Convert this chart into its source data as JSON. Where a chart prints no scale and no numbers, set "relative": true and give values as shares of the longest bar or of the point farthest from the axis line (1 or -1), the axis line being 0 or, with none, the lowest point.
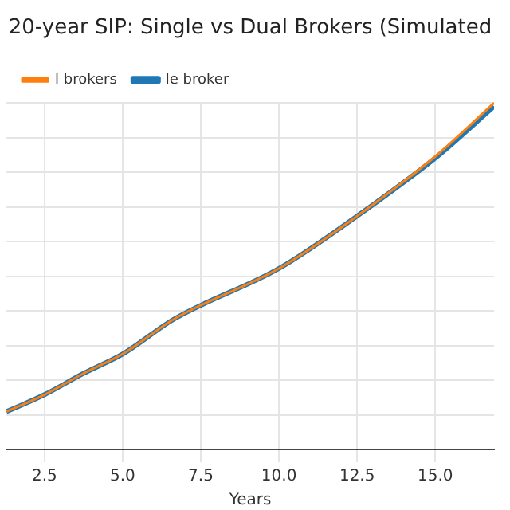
{
  "chart_data": {
    "type": "line",
    "title": "20-year SIP: Single vs Dual Brokers (Simulated",
    "xlabel": "Years",
    "relative": true,
    "x": [
      1.28,
      2.5,
      3.72,
      5.03,
      6.64,
      10.05,
      12.49,
      15.07,
      16.88
    ],
    "series": [
      {
        "name": "le broker",
        "color": "#1f77b4",
        "values": [
          0.109,
          0.158,
          0.218,
          0.277,
          0.376,
          0.525,
          0.673,
          0.846,
          0.99
        ]
      },
      {
        "name": "l brokers",
        "color": "#ff7f0e",
        "values": [
          0.109,
          0.158,
          0.218,
          0.277,
          0.376,
          0.525,
          0.673,
          0.851,
          1.0
        ]
      }
    ],
    "xlim": [
      1.28,
      16.88
    ],
    "xticks": [
      {
        "value": 2.5,
        "label": "2.5"
      },
      {
        "value": 5,
        "label": "5.0"
      },
      {
        "value": 7.5,
        "label": "7.5"
      },
      {
        "value": 10,
        "label": "10.0"
      },
      {
        "value": 12.5,
        "label": "12.5"
      },
      {
        "value": 15,
        "label": "15.0"
      }
    ],
    "grid": true,
    "legend": "top left",
    "marker": "none",
    "line_style": "solid"
  }
}
